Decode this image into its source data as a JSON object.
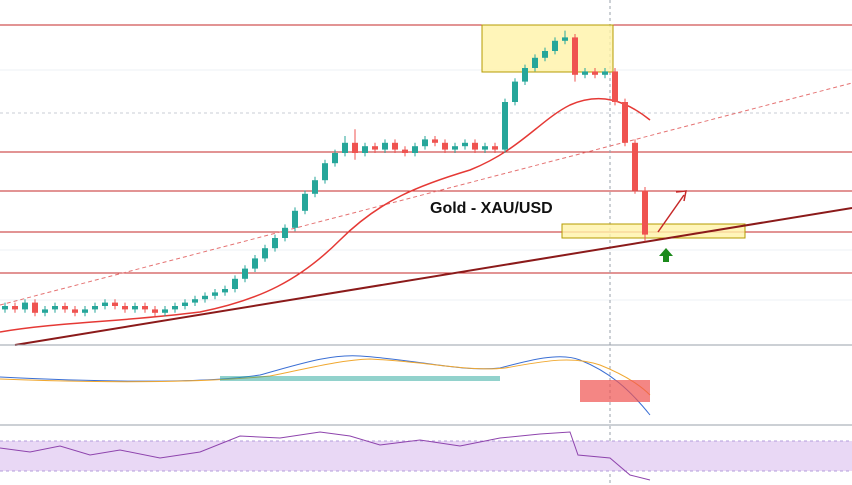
{
  "chart_data": {
    "type": "candlestick",
    "title": "Gold - XAU/USD",
    "open": [
      9,
      10,
      9,
      11,
      8,
      9,
      10,
      9,
      8,
      9,
      10,
      11,
      10,
      9,
      10,
      9,
      8,
      9,
      10,
      11,
      12,
      13,
      14,
      15,
      18,
      21,
      24,
      27,
      30,
      33,
      38,
      43,
      47,
      52,
      55,
      58,
      55,
      57,
      56,
      58,
      56,
      55,
      57,
      59,
      58,
      56,
      57,
      58,
      56,
      57,
      56,
      70,
      76,
      80,
      83,
      85,
      88,
      89,
      78,
      79,
      78,
      79,
      70,
      58,
      44
    ],
    "high": [
      11,
      11,
      12,
      12,
      10,
      11,
      11,
      10,
      10,
      11,
      12,
      12,
      11,
      11,
      11,
      10,
      10,
      11,
      12,
      13,
      14,
      15,
      16,
      19,
      22,
      25,
      28,
      31,
      34,
      39,
      44,
      48,
      53,
      56,
      60,
      62,
      58,
      58,
      59,
      59,
      57,
      58,
      60,
      60,
      59,
      58,
      59,
      59,
      58,
      58,
      71,
      77,
      81,
      84,
      86,
      89,
      91,
      90,
      80,
      80,
      80,
      80,
      71,
      59,
      45
    ],
    "low": [
      8,
      8,
      8,
      7,
      7,
      8,
      8,
      7,
      7,
      8,
      9,
      9,
      8,
      8,
      8,
      7,
      7,
      8,
      9,
      10,
      11,
      12,
      13,
      14,
      17,
      20,
      23,
      26,
      29,
      32,
      37,
      42,
      46,
      51,
      54,
      53,
      54,
      55,
      55,
      55,
      54,
      54,
      56,
      57,
      55,
      55,
      56,
      55,
      55,
      55,
      55,
      69,
      75,
      79,
      82,
      84,
      87,
      76,
      77,
      77,
      77,
      69,
      57,
      43,
      29
    ],
    "close": [
      10,
      9,
      11,
      8,
      9,
      10,
      9,
      8,
      9,
      10,
      11,
      10,
      9,
      10,
      9,
      8,
      9,
      10,
      11,
      12,
      13,
      14,
      15,
      18,
      21,
      24,
      27,
      30,
      33,
      38,
      43,
      47,
      52,
      55,
      58,
      55,
      57,
      56,
      58,
      56,
      55,
      57,
      59,
      58,
      56,
      57,
      58,
      56,
      57,
      56,
      70,
      76,
      80,
      83,
      85,
      88,
      89,
      78,
      79,
      78,
      79,
      70,
      58,
      44,
      31
    ],
    "up_color": "#26a69a",
    "down_color": "#ef5350",
    "ylim": [
      0,
      100
    ]
  }
}
